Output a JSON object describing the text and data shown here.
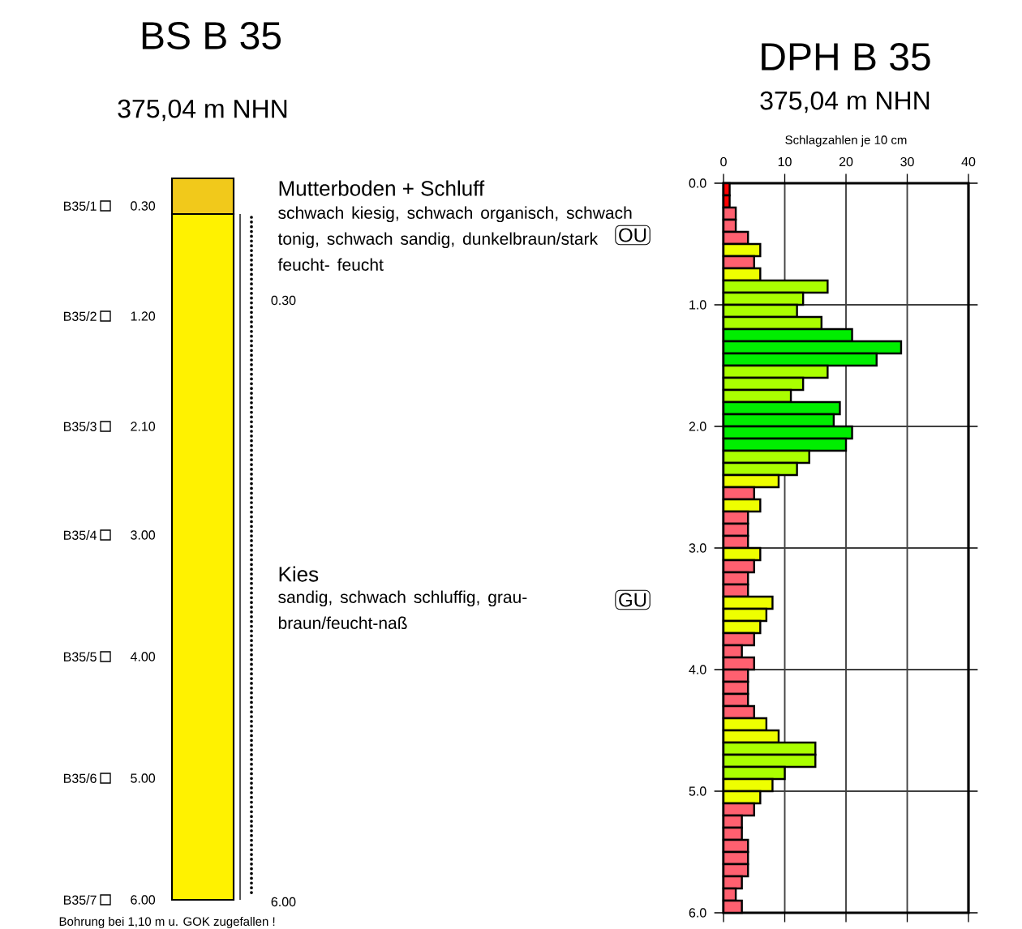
{
  "chart_data": [
    {
      "type": "other",
      "title": "BS B 35",
      "subtitle": "375,04 m NHN",
      "annotations": [
        "B35/1",
        "0.30",
        "B35/2",
        "1.20",
        "B35/3",
        "2.10",
        "B35/4",
        "3.00",
        "B35/5",
        "4.00",
        "B35/6",
        "5.00",
        "B35/7",
        "6.00",
        "Mutterboden + Schluff",
        "schwach kiesig, schwach organisch, schwach tonig, schwach sandig, dunkelbraun/stark feucht- feucht",
        "OU",
        "0.30",
        "Kies",
        "sandig, schwach schluffig, grau-braun/feucht-naß",
        "GU",
        "6.00",
        "Bohrung bei 1,10 m u. GOK zugefallen !"
      ]
    },
    {
      "type": "histogram",
      "orientation": "horizontal",
      "title": "DPH B 35",
      "subtitle": "375,04 m NHN",
      "xlabel": "Schlagzahlen je 10 cm",
      "bins": [
        0.0,
        0.1,
        0.2,
        0.3,
        0.4,
        0.5,
        0.6,
        0.7,
        0.8,
        0.9,
        1.0,
        1.1,
        1.2,
        1.3,
        1.4,
        1.5,
        1.6,
        1.7,
        1.8,
        1.9,
        2.0,
        2.1,
        2.2,
        2.3,
        2.4,
        2.5,
        2.6,
        2.7,
        2.8,
        2.9,
        3.0,
        3.1,
        3.2,
        3.3,
        3.4,
        3.5,
        3.6,
        3.7,
        3.8,
        3.9,
        4.0,
        4.1,
        4.2,
        4.3,
        4.4,
        4.5,
        4.6,
        4.7,
        4.8,
        4.9,
        5.0,
        5.1,
        5.2,
        5.3,
        5.4,
        5.5,
        5.6,
        5.7,
        5.8,
        5.9,
        6.0
      ],
      "values": [
        1,
        1,
        2,
        2,
        4,
        6,
        5,
        6,
        17,
        13,
        12,
        16,
        21,
        29,
        25,
        17,
        13,
        11,
        19,
        18,
        21,
        20,
        14,
        12,
        9,
        5,
        6,
        4,
        4,
        4,
        6,
        5,
        4,
        4,
        8,
        7,
        6,
        5,
        3,
        5,
        4,
        4,
        4,
        5,
        7,
        9,
        15,
        15,
        10,
        8,
        6,
        5,
        3,
        3,
        4,
        4,
        4,
        3,
        2,
        3
      ],
      "colors": [
        "#ff0000",
        "#ff0000",
        "#ff6070",
        "#ff6070",
        "#ff6070",
        "#eeff00",
        "#ff6070",
        "#eeff00",
        "#aaff00",
        "#aaff00",
        "#aaff00",
        "#aaff00",
        "#00ee00",
        "#00ee00",
        "#00ee00",
        "#aaff00",
        "#aaff00",
        "#aaff00",
        "#00ee00",
        "#00ee00",
        "#00ee00",
        "#00ee00",
        "#aaff00",
        "#aaff00",
        "#eeff00",
        "#ff6070",
        "#eeff00",
        "#ff6070",
        "#ff6070",
        "#ff6070",
        "#eeff00",
        "#ff6070",
        "#ff6070",
        "#ff6070",
        "#eeff00",
        "#eeff00",
        "#eeff00",
        "#ff6070",
        "#ff6070",
        "#ff6070",
        "#ff6070",
        "#ff6070",
        "#ff6070",
        "#ff6070",
        "#eeff00",
        "#eeff00",
        "#aaff00",
        "#aaff00",
        "#aaff00",
        "#eeff00",
        "#eeff00",
        "#ff6070",
        "#ff6070",
        "#ff6070",
        "#ff6070",
        "#ff6070",
        "#ff6070",
        "#ff6070",
        "#ff6070",
        "#ff6070"
      ],
      "xlim": [
        0,
        40
      ],
      "xticks": [
        0,
        10,
        20,
        30,
        40
      ],
      "ylim": [
        6,
        0
      ],
      "yticks": [
        {
          "value": 0,
          "label": "0.0"
        },
        {
          "value": 1,
          "label": "1.0"
        },
        {
          "value": 2,
          "label": "2.0"
        },
        {
          "value": 3,
          "label": "3.0"
        },
        {
          "value": 4,
          "label": "4.0"
        },
        {
          "value": 5,
          "label": "5.0"
        },
        {
          "value": 6,
          "label": "6.0"
        }
      ],
      "grid": true
    }
  ]
}
